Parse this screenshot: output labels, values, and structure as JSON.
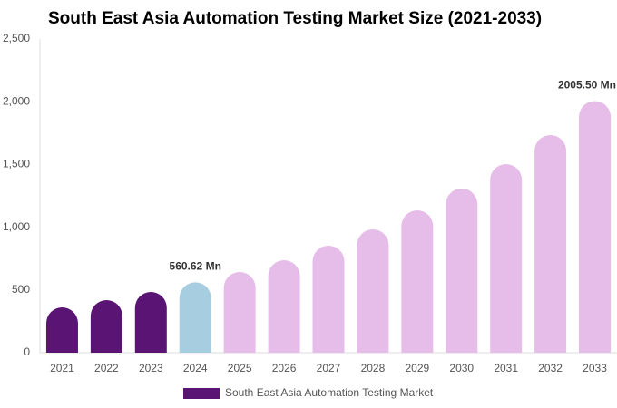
{
  "chart_data": {
    "type": "bar",
    "title": "South East Asia Automation Testing Market Size (2021-2033)",
    "categories": [
      "2021",
      "2022",
      "2023",
      "2024",
      "2025",
      "2026",
      "2027",
      "2028",
      "2029",
      "2030",
      "2031",
      "2032",
      "2033"
    ],
    "series": [
      {
        "name": "South East Asia Automation Testing Market",
        "color": "#5a1474",
        "values": [
          361,
          419,
          484,
          560.62,
          643,
          737,
          853,
          983,
          1134,
          1308,
          1503,
          1734,
          2005.5
        ],
        "value_labels": [
          null,
          null,
          null,
          "560.62 Mn",
          null,
          null,
          null,
          null,
          null,
          null,
          null,
          null,
          "2005.50 Mn"
        ],
        "colors": [
          "#5a1474",
          "#5a1474",
          "#5a1474",
          "#a6cde0",
          "#e6bde9",
          "#e6bde9",
          "#e6bde9",
          "#e6bde9",
          "#e6bde9",
          "#e6bde9",
          "#e6bde9",
          "#e6bde9",
          "#e6bde9"
        ]
      }
    ],
    "ylim": [
      0,
      2500
    ],
    "yticks": [
      0,
      500,
      {
        "value": 1000,
        "label": "1,000"
      },
      {
        "value": 1500,
        "label": "1,500"
      },
      {
        "value": 2000,
        "label": "2,000"
      },
      {
        "value": 2500,
        "label": "2,500"
      }
    ],
    "grid": false
  }
}
